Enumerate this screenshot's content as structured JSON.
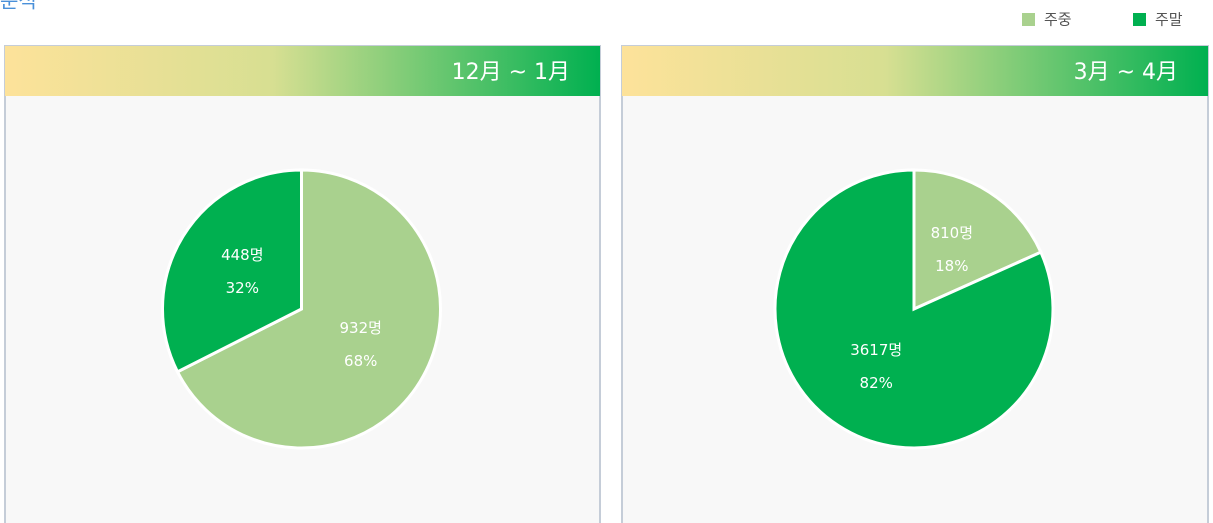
{
  "header": {
    "title": "분석"
  },
  "chart_data": [
    {
      "type": "pie",
      "title": "12月 ~ 1月",
      "categories": [
        "주중",
        "주말"
      ],
      "colors": [
        "#a9d18e",
        "#00b050"
      ],
      "values": [
        932,
        448
      ],
      "value_labels": [
        "932명",
        "448명"
      ],
      "percents": [
        68,
        32
      ],
      "percent_labels": [
        "68%",
        "32%"
      ]
    },
    {
      "type": "pie",
      "title": "3月 ~ 4月",
      "categories": [
        "주중",
        "주말"
      ],
      "colors": [
        "#a9d18e",
        "#00b050"
      ],
      "values": [
        810,
        3617
      ],
      "value_labels": [
        "810명",
        "3617명"
      ],
      "percents": [
        18,
        82
      ],
      "percent_labels": [
        "18%",
        "82%"
      ]
    }
  ]
}
